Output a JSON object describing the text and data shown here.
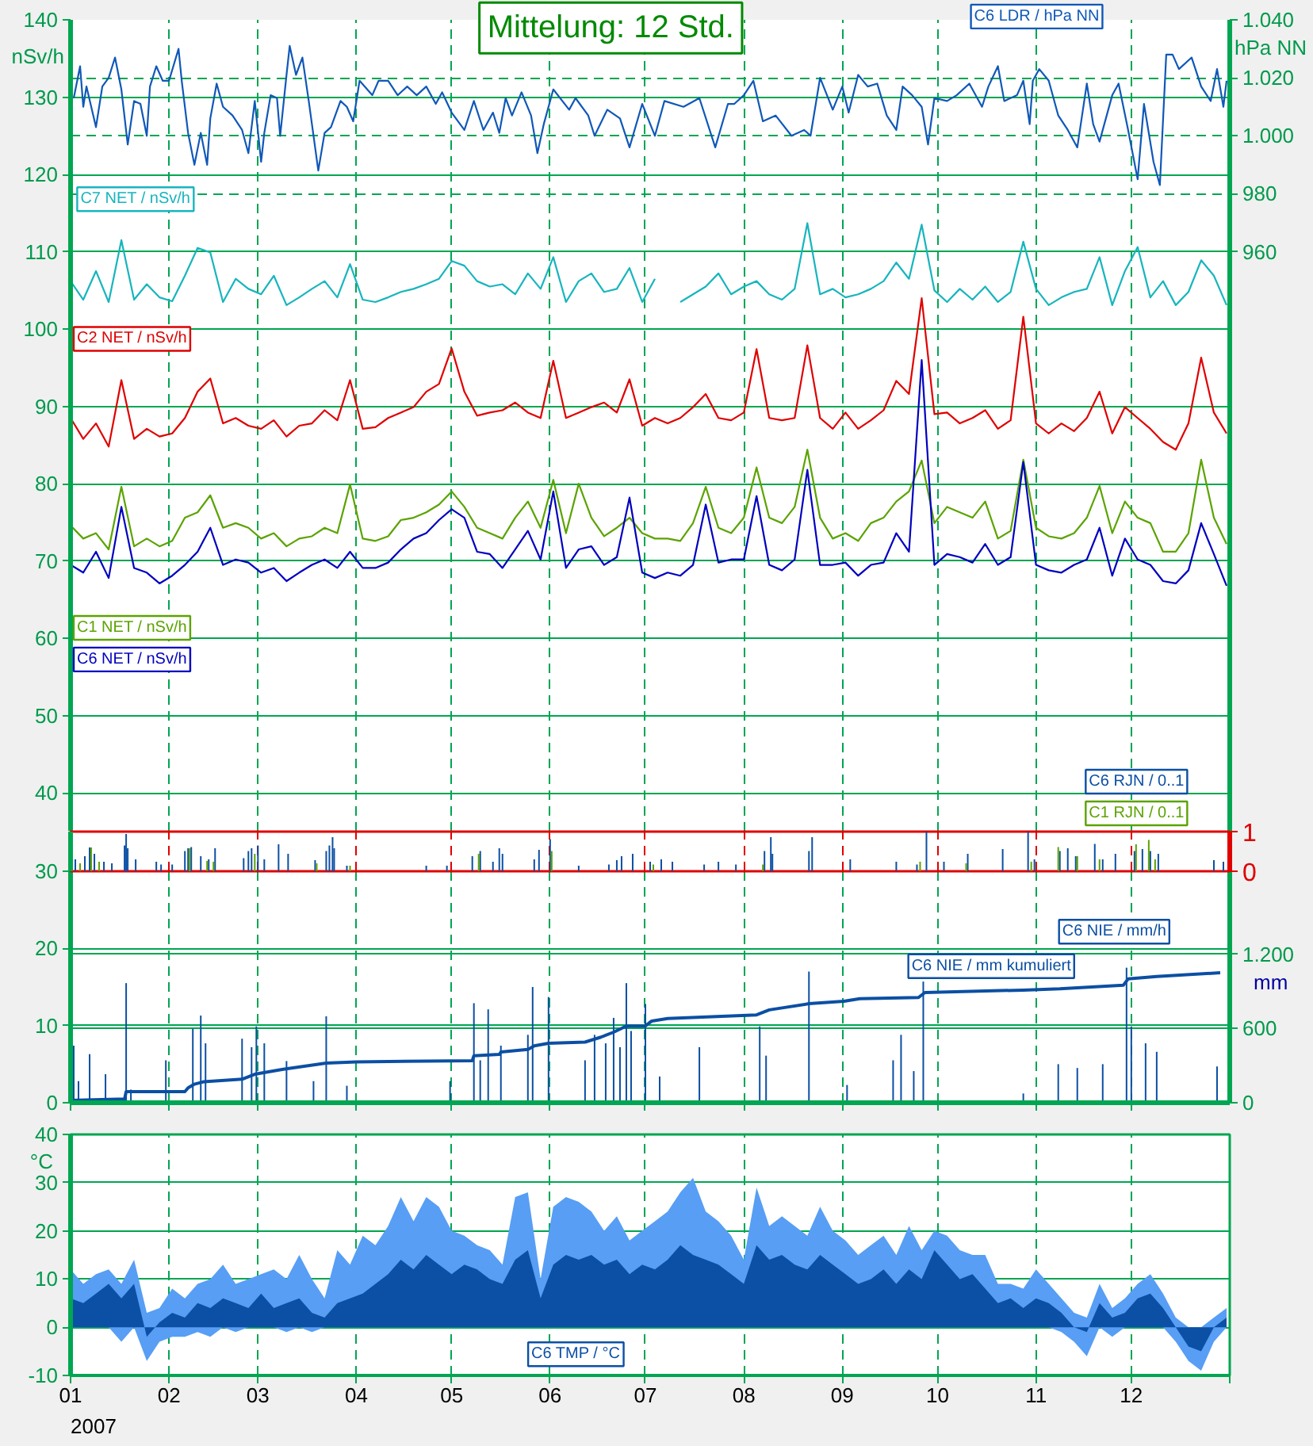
{
  "chart_data": [
    {
      "type": "line",
      "title": "Mittelung: 12 Std.",
      "ylabel": "nSv/h",
      "y2label": "hPa NN",
      "x": [
        "2007-01-01",
        "2007-01-05",
        "2007-01-09",
        "2007-01-13",
        "2007-01-17",
        "2007-01-21",
        "2007-01-25",
        "2007-01-29",
        "2007-02-02",
        "2007-02-06",
        "2007-02-10",
        "2007-02-14",
        "2007-02-18",
        "2007-02-22",
        "2007-02-26",
        "2007-03-02",
        "2007-03-06",
        "2007-03-10",
        "2007-03-14",
        "2007-03-18",
        "2007-03-22",
        "2007-03-26",
        "2007-03-30",
        "2007-04-03",
        "2007-04-07",
        "2007-04-11",
        "2007-04-15",
        "2007-04-19",
        "2007-04-23",
        "2007-04-27",
        "2007-05-01",
        "2007-05-05",
        "2007-05-09",
        "2007-05-13",
        "2007-05-17",
        "2007-05-21",
        "2007-05-25",
        "2007-05-29",
        "2007-06-02",
        "2007-06-06",
        "2007-06-10",
        "2007-06-14",
        "2007-06-18",
        "2007-06-22",
        "2007-06-26",
        "2007-06-30",
        "2007-07-04",
        "2007-07-08",
        "2007-07-12",
        "2007-07-16",
        "2007-07-20",
        "2007-07-24",
        "2007-07-28",
        "2007-08-01",
        "2007-08-05",
        "2007-08-09",
        "2007-08-13",
        "2007-08-17",
        "2007-08-21",
        "2007-08-25",
        "2007-08-29",
        "2007-09-02",
        "2007-09-06",
        "2007-09-10",
        "2007-09-14",
        "2007-09-18",
        "2007-09-22",
        "2007-09-26",
        "2007-09-30",
        "2007-10-04",
        "2007-10-08",
        "2007-10-12",
        "2007-10-16",
        "2007-10-20",
        "2007-10-24",
        "2007-10-28",
        "2007-11-01",
        "2007-11-05",
        "2007-11-09",
        "2007-11-13",
        "2007-11-17",
        "2007-11-21",
        "2007-11-25",
        "2007-11-29",
        "2007-12-03",
        "2007-12-07",
        "2007-12-11",
        "2007-12-15",
        "2007-12-19",
        "2007-12-23",
        "2007-12-27",
        "2007-12-31"
      ],
      "series": [
        {
          "name": "C6 LDR / hPa NN",
          "color": "#1058b8",
          "axis": "y2",
          "x": [
            "2007-01-02",
            "2007-01-04",
            "2007-01-05",
            "2007-01-06",
            "2007-01-09",
            "2007-01-11",
            "2007-01-13",
            "2007-01-15",
            "2007-01-17",
            "2007-01-19",
            "2007-01-21",
            "2007-01-23",
            "2007-01-25",
            "2007-01-26",
            "2007-01-28",
            "2007-01-30",
            "2007-02-01",
            "2007-02-04",
            "2007-02-05",
            "2007-02-07",
            "2007-02-09",
            "2007-02-11",
            "2007-02-13",
            "2007-02-14",
            "2007-02-16",
            "2007-02-18",
            "2007-02-21",
            "2007-02-24",
            "2007-02-26",
            "2007-02-28",
            "2007-03-02",
            "2007-03-03",
            "2007-03-05",
            "2007-03-07",
            "2007-03-08",
            "2007-03-10",
            "2007-03-11",
            "2007-03-13",
            "2007-03-15",
            "2007-03-17",
            "2007-03-20",
            "2007-03-22",
            "2007-03-24",
            "2007-03-27",
            "2007-03-29",
            "2007-03-31",
            "2007-04-02",
            "2007-04-06",
            "2007-04-08",
            "2007-04-11",
            "2007-04-14",
            "2007-04-17",
            "2007-04-20",
            "2007-04-23",
            "2007-04-26",
            "2007-04-28",
            "2007-05-01",
            "2007-05-05",
            "2007-05-08",
            "2007-05-11",
            "2007-05-14",
            "2007-05-16",
            "2007-05-18",
            "2007-05-20",
            "2007-05-23",
            "2007-05-26",
            "2007-05-28",
            "2007-05-30",
            "2007-06-02",
            "2007-06-07",
            "2007-06-09",
            "2007-06-13",
            "2007-06-15",
            "2007-06-19",
            "2007-06-23",
            "2007-06-26",
            "2007-06-30",
            "2007-07-04",
            "2007-07-07",
            "2007-07-13",
            "2007-07-18",
            "2007-07-23",
            "2007-07-27",
            "2007-07-29",
            "2007-08-01",
            "2007-08-04",
            "2007-08-07",
            "2007-08-11",
            "2007-08-16",
            "2007-08-20",
            "2007-08-22",
            "2007-08-25",
            "2007-08-29",
            "2007-09-01",
            "2007-09-03",
            "2007-09-06",
            "2007-09-09",
            "2007-09-12",
            "2007-09-15",
            "2007-09-18",
            "2007-09-20",
            "2007-09-23",
            "2007-09-26",
            "2007-09-28",
            "2007-09-30",
            "2007-10-04",
            "2007-10-07",
            "2007-10-11",
            "2007-10-15",
            "2007-10-17",
            "2007-10-20",
            "2007-10-22",
            "2007-10-26",
            "2007-10-28",
            "2007-10-30",
            "2007-10-31",
            "2007-11-02",
            "2007-11-05",
            "2007-11-08",
            "2007-11-11",
            "2007-11-14",
            "2007-11-17",
            "2007-11-19",
            "2007-11-21",
            "2007-11-25",
            "2007-11-27",
            "2007-11-30",
            "2007-12-03",
            "2007-12-05",
            "2007-12-08",
            "2007-12-10",
            "2007-12-12",
            "2007-12-14",
            "2007-12-16",
            "2007-12-20",
            "2007-12-23",
            "2007-12-26",
            "2007-12-28",
            "2007-12-30",
            "2007-12-31"
          ],
          "values": [
            1013,
            1024,
            1010,
            1017,
            1003,
            1017,
            1020,
            1027,
            1016,
            997,
            1012,
            1011,
            1000,
            1017,
            1024,
            1019,
            1019,
            1030,
            1019,
            1001,
            990,
            1001,
            990,
            1006,
            1018,
            1010,
            1007,
            1002,
            994,
            1012,
            991,
            1001,
            1014,
            1013,
            1000,
            1021,
            1031,
            1021,
            1027,
            1012,
            988,
            1001,
            1003,
            1012,
            1010,
            1005,
            1019,
            1014,
            1019,
            1019,
            1014,
            1017,
            1014,
            1017,
            1011,
            1015,
            1008,
            1002,
            1012,
            1002,
            1008,
            1001,
            1013,
            1007,
            1015,
            1007,
            994,
            1004,
            1016,
            1009,
            1013,
            1007,
            1000,
            1009,
            1006,
            996,
            1011,
            1000,
            1012,
            1010,
            1013,
            996,
            1011,
            1011,
            1014,
            1019,
            1005,
            1007,
            1000,
            1002,
            1000,
            1020,
            1009,
            1017,
            1008,
            1021,
            1017,
            1018,
            1007,
            1002,
            1017,
            1014,
            1010,
            997,
            1013,
            1012,
            1014,
            1018,
            1010,
            1017,
            1024,
            1012,
            1014,
            1019,
            1004,
            1019,
            1023,
            1019,
            1007,
            1002,
            996,
            1018,
            1004,
            998,
            1014,
            1018,
            1002,
            985,
            1011,
            991,
            983,
            1028,
            1028,
            1023,
            1027,
            1017,
            1012,
            1023,
            1010,
            1019
          ]
        },
        {
          "name": "C7 NET / nSv/h",
          "color": "#17b5bd",
          "values": [
            106.2,
            103.8,
            107.5,
            103.5,
            111.5,
            103.8,
            105.8,
            104.1,
            103.6,
            106.9,
            110.5,
            109.9,
            103.5,
            106.5,
            105.2,
            104.5,
            106.9,
            103.1,
            104.1,
            105.2,
            106.2,
            104.1,
            108.4,
            103.8,
            103.5,
            104.1,
            104.8,
            105.2,
            105.8,
            106.5,
            108.8,
            108.2,
            106.2,
            105.5,
            105.8,
            104.5,
            107.2,
            105.2,
            109.3,
            103.5,
            106.2,
            107.2,
            104.8,
            105.2,
            107.9,
            103.5,
            106.5,
            null,
            103.5,
            104.5,
            105.5,
            107.2,
            104.5,
            105.5,
            106.2,
            104.5,
            103.8,
            105.2,
            113.7,
            104.5,
            105.2,
            104.1,
            104.5,
            105.2,
            106.2,
            108.6,
            106.5,
            113.5,
            105.0,
            103.5,
            105.2,
            103.8,
            105.5,
            103.5,
            104.8,
            111.3,
            105.2,
            103.1,
            104.1,
            104.8,
            105.2,
            109.3,
            103.1,
            107.5,
            110.6,
            104.1,
            106.2,
            103.1,
            104.8,
            108.9,
            106.9,
            103.1
          ]
        },
        {
          "name": "C2 NET / nSv/h",
          "color": "#e00000",
          "values": [
            88.5,
            85.8,
            87.8,
            84.8,
            93.4,
            85.8,
            87.1,
            86.1,
            86.5,
            88.5,
            91.9,
            93.6,
            87.8,
            88.5,
            87.5,
            87.1,
            88.2,
            86.1,
            87.5,
            87.8,
            89.5,
            88.2,
            93.4,
            87.1,
            87.3,
            88.5,
            89.2,
            89.9,
            91.9,
            92.9,
            97.5,
            91.9,
            88.8,
            89.2,
            89.5,
            90.5,
            89.2,
            88.5,
            95.9,
            88.5,
            89.2,
            89.9,
            90.5,
            89.2,
            93.5,
            87.5,
            88.5,
            87.8,
            88.5,
            89.9,
            91.6,
            88.5,
            88.2,
            89.2,
            97.4,
            88.5,
            88.2,
            88.5,
            97.9,
            88.5,
            87.1,
            89.2,
            87.1,
            88.2,
            89.5,
            93.3,
            91.6,
            104.0,
            89.0,
            89.2,
            87.8,
            88.5,
            89.5,
            87.1,
            88.2,
            101.6,
            87.8,
            86.5,
            87.8,
            86.8,
            88.5,
            91.9,
            86.5,
            89.9,
            88.5,
            87.1,
            85.4,
            84.4,
            87.8,
            96.3,
            89.2,
            86.5
          ]
        },
        {
          "name": "C1 NET / nSv/h",
          "color": "#5ba300",
          "values": [
            74.6,
            72.9,
            73.6,
            71.5,
            79.6,
            71.9,
            72.9,
            71.9,
            72.6,
            75.6,
            76.3,
            78.5,
            74.3,
            74.9,
            74.3,
            72.9,
            73.6,
            71.9,
            72.9,
            73.2,
            74.3,
            73.6,
            79.9,
            72.9,
            72.6,
            73.2,
            75.3,
            75.6,
            76.3,
            77.3,
            79.0,
            77.0,
            74.3,
            73.6,
            72.9,
            75.6,
            77.7,
            74.3,
            80.5,
            73.6,
            80.0,
            75.6,
            73.2,
            74.3,
            75.6,
            73.6,
            72.9,
            72.9,
            72.6,
            74.9,
            79.6,
            74.3,
            73.6,
            75.6,
            82.1,
            75.6,
            74.9,
            77.0,
            84.4,
            75.6,
            72.9,
            73.6,
            72.6,
            74.9,
            75.6,
            77.7,
            79.0,
            83.0,
            74.9,
            77.0,
            76.3,
            75.6,
            77.7,
            72.9,
            73.9,
            83.1,
            74.3,
            73.2,
            72.9,
            73.6,
            75.6,
            79.7,
            73.6,
            77.7,
            75.6,
            74.9,
            71.2,
            71.2,
            73.6,
            83.1,
            75.6,
            72.2
          ]
        },
        {
          "name": "C6 NET / nSv/h",
          "color": "#0000c0",
          "values": [
            69.5,
            68.5,
            71.2,
            67.8,
            77.0,
            69.1,
            68.5,
            67.1,
            68.1,
            69.5,
            71.2,
            74.3,
            69.5,
            70.2,
            69.8,
            68.5,
            69.1,
            67.4,
            68.5,
            69.5,
            70.2,
            69.1,
            71.2,
            69.1,
            69.1,
            69.8,
            71.5,
            72.9,
            73.6,
            75.3,
            76.7,
            75.6,
            71.2,
            70.9,
            69.1,
            71.5,
            73.9,
            70.2,
            79.0,
            69.1,
            71.5,
            71.9,
            69.5,
            70.5,
            78.2,
            68.5,
            67.8,
            68.5,
            68.1,
            69.5,
            77.3,
            69.8,
            70.2,
            70.2,
            78.4,
            69.5,
            68.8,
            70.2,
            81.8,
            69.5,
            69.5,
            69.8,
            68.1,
            69.5,
            69.8,
            73.6,
            71.2,
            96.0,
            69.5,
            70.9,
            70.5,
            69.8,
            72.2,
            69.5,
            70.5,
            82.8,
            69.5,
            68.8,
            68.5,
            69.5,
            70.2,
            74.3,
            68.1,
            72.9,
            70.2,
            69.5,
            67.4,
            67.1,
            68.8,
            74.9,
            70.9,
            66.8
          ]
        }
      ],
      "xlim": [
        "2007-01-01",
        "2008-01-01"
      ],
      "xticks": [
        "2007-01-01",
        "2007-02-01",
        "2007-03-01",
        "2007-04-01",
        "2007-05-01",
        "2007-06-01",
        "2007-07-01",
        "2007-08-01",
        "2007-09-01",
        "2007-10-01",
        "2007-11-01",
        "2007-12-01"
      ],
      "ylim": [
        35,
        140
      ],
      "yticks": [
        40,
        50,
        60,
        70,
        80,
        90,
        100,
        110,
        120,
        130,
        140
      ],
      "y2lim": [
        760,
        1040
      ],
      "y2ticks": [
        960,
        980,
        {
          "value": 1000,
          "label": "1.000"
        },
        {
          "value": 1020,
          "label": "1.020"
        },
        {
          "value": 1040,
          "label": "1.040"
        }
      ],
      "grid": true,
      "tick_labels": "y"
    },
    {
      "type": "bar",
      "series": [
        {
          "name": "C6 RJN / 0..1",
          "color": "#0b4fa3",
          "axis": "y2",
          "x": [
            "2007-01-02T12:00",
            "2007-01-05T12:00",
            "2007-01-07",
            "2007-01-08T12:00",
            "2007-01-11T12:00",
            "2007-01-14",
            "2007-01-18",
            "2007-01-18T12:00",
            "2007-01-19",
            "2007-01-21T12:00",
            "2007-01-28",
            "2007-01-29T12:00",
            "2007-02-02",
            "2007-02-06",
            "2007-02-07",
            "2007-02-08",
            "2007-02-11",
            "2007-02-13T12:00",
            "2007-02-15T12:00",
            "2007-02-24T12:00",
            "2007-02-26",
            "2007-02-27",
            "2007-03-01",
            "2007-03-03",
            "2007-03-07T12:00",
            "2007-03-10T12:00",
            "2007-03-19",
            "2007-03-22T12:00",
            "2007-03-23T12:00",
            "2007-03-24T12:00",
            "2007-03-25",
            "2007-03-29",
            "2007-04-23",
            "2007-04-29T12:00",
            "2007-05-07T12:00",
            "2007-05-10",
            "2007-05-14",
            "2007-05-16",
            "2007-05-17",
            "2007-05-27",
            "2007-05-28T12:00",
            "2007-06-01",
            "2007-06-10",
            "2007-06-19T12:00",
            "2007-06-22",
            "2007-06-23T12:00",
            "2007-06-27",
            "2007-07-02T12:00",
            "2007-07-06",
            "2007-07-09T12:00",
            "2007-07-19T12:00",
            "2007-07-24",
            "2007-07-29T12:00",
            "2007-08-07T12:00",
            "2007-08-09T12:00",
            "2007-08-10",
            "2007-08-21T12:00",
            "2007-08-22T12:00",
            "2007-09-03T12:00",
            "2007-09-18",
            "2007-09-24T12:00",
            "2007-09-27T12:00",
            "2007-10-03",
            "2007-10-10T12:00",
            "2007-10-21T12:00",
            "2007-10-29T12:00",
            "2007-10-31T12:00",
            "2007-11-08T12:00",
            "2007-11-11",
            "2007-11-13T12:00",
            "2007-11-19T12:00",
            "2007-11-22",
            "2007-11-26",
            "2007-12-02",
            "2007-12-04T12:00",
            "2007-12-07",
            "2007-12-09T12:00",
            "2007-12-27",
            "2007-12-30"
          ],
          "values": [
            0.3,
            0.38,
            0.6,
            0.44,
            0.24,
            0.2,
            0.65,
            0.94,
            0.58,
            0.3,
            0.24,
            0.17,
            0.17,
            0.51,
            0.58,
            0.61,
            0.38,
            0.3,
            0.58,
            0.33,
            0.51,
            0.58,
            0.65,
            0.3,
            0.68,
            0.44,
            0.28,
            0.51,
            0.65,
            0.86,
            0.58,
            0.14,
            0.14,
            0.14,
            0.38,
            0.51,
            0.24,
            0.58,
            0.44,
            0.3,
            0.54,
            0.81,
            0.14,
            0.17,
            0.28,
            0.38,
            0.44,
            0.24,
            0.3,
            0.24,
            0.17,
            0.24,
            0.17,
            0.51,
            0.86,
            0.44,
            0.51,
            0.86,
            0.3,
            0.24,
            0.17,
            1.0,
            0.24,
            0.44,
            0.56,
            1.0,
            0.3,
            0.51,
            0.58,
            0.38,
            0.69,
            0.3,
            0.44,
            0.51,
            0.56,
            0.51,
            0.44,
            0.28,
            0.24
          ]
        },
        {
          "name": "C1 RJN / 0..1",
          "color": "#5ba300",
          "axis": "y2",
          "x": [
            "2007-01-04",
            "2007-01-07T12:00",
            "2007-01-10",
            "2007-02-07T12:00",
            "2007-02-13",
            "2007-02-15",
            "2007-02-28",
            "2007-03-19T12:00",
            "2007-03-30",
            "2007-05-09T12:00",
            "2007-06-01T12:00",
            "2007-07-03T12:00",
            "2007-08-07",
            "2007-09-25T12:00",
            "2007-10-10",
            "2007-10-30T12:00",
            "2007-11-08",
            "2007-11-14",
            "2007-11-21",
            "2007-12-02T12:00",
            "2007-12-06T12:00",
            "2007-12-08T12:00"
          ],
          "values": [
            0.2,
            0.6,
            0.24,
            0.58,
            0.26,
            0.24,
            0.44,
            0.2,
            0.14,
            0.44,
            0.51,
            0.17,
            0.17,
            0.24,
            0.2,
            0.24,
            0.61,
            0.38,
            0.3,
            0.68,
            0.79,
            0.3
          ]
        }
      ],
      "xlim": [
        "2007-01-01",
        "2008-01-01"
      ],
      "xticks": [
        "2007-01-01",
        "2007-02-01",
        "2007-03-01",
        "2007-04-01",
        "2007-05-01",
        "2007-06-01",
        "2007-07-01",
        "2007-08-01",
        "2007-09-01",
        "2007-10-01",
        "2007-11-01",
        "2007-12-01"
      ],
      "y2lim": [
        0,
        1
      ],
      "y2ticks": [
        0,
        1
      ],
      "grid": "x",
      "tick_labels": "y"
    },
    {
      "type": "bar",
      "y2label": "mm",
      "series": [
        {
          "name": "C6 NIE / mm/h",
          "color": "#0b4fa3",
          "x": [
            "2007-01-02",
            "2007-01-03T12:00",
            "2007-01-07",
            "2007-01-12",
            "2007-01-18T12:00",
            "2007-01-20",
            "2007-01-31",
            "2007-02-08T12:00",
            "2007-02-11",
            "2007-02-12T12:00",
            "2007-02-24",
            "2007-02-27",
            "2007-02-28T12:00",
            "2007-03-03",
            "2007-03-10",
            "2007-03-18T12:00",
            "2007-03-22T12:00",
            "2007-03-29",
            "2007-04-30T12:00",
            "2007-05-08",
            "2007-05-10",
            "2007-05-12T12:00",
            "2007-05-16T12:00",
            "2007-05-25",
            "2007-05-26T12:00",
            "2007-05-31T12:00",
            "2007-06-12",
            "2007-06-15",
            "2007-06-18T12:00",
            "2007-06-21",
            "2007-06-23",
            "2007-06-25",
            "2007-06-26T12:00",
            "2007-07-01",
            "2007-07-05T12:00",
            "2007-07-18",
            "2007-08-06",
            "2007-08-08",
            "2007-08-21T12:00",
            "2007-09-02T12:00",
            "2007-09-17",
            "2007-09-19T12:00",
            "2007-09-23T12:00",
            "2007-09-26T12:00",
            "2007-10-28",
            "2007-11-08",
            "2007-11-14",
            "2007-11-22",
            "2007-11-29T12:00",
            "2007-12-01",
            "2007-12-05T12:00",
            "2007-12-09",
            "2007-12-28"
          ],
          "values": [
            7.4,
            2.8,
            6.3,
            3.7,
            15.5,
            1.7,
            5.5,
            9.6,
            11.3,
            7.7,
            8.3,
            7.2,
            9.9,
            7.7,
            5.4,
            2.8,
            11.2,
            2.2,
            2.8,
            12.9,
            5.5,
            12.1,
            7.4,
            8.8,
            15.0,
            13.7,
            5.5,
            8.8,
            7.7,
            11.0,
            7.2,
            15.5,
            9.3,
            12.8,
            3.4,
            7.2,
            9.9,
            6.1,
            17.0,
            2.3,
            5.5,
            8.8,
            4.1,
            15.7,
            1.2,
            5.0,
            4.5,
            5.0,
            17.5,
            9.9,
            7.7,
            6.6,
            4.7
          ]
        },
        {
          "type": "line",
          "name": "C6 NIE / mm kumuliert",
          "color": "#0b4fa3",
          "axis": "y2",
          "x": [
            "2007-01-01",
            "2007-01-18",
            "2007-01-18T12:00",
            "2007-02-06",
            "2007-02-07",
            "2007-02-09",
            "2007-02-12",
            "2007-02-24",
            "2007-02-28",
            "2007-03-09",
            "2007-03-22T12:00",
            "2007-04-01",
            "2007-05-07T12:00",
            "2007-05-08",
            "2007-05-16",
            "2007-05-16T12:00",
            "2007-05-25",
            "2007-05-27",
            "2007-05-31T12:00",
            "2007-06-12",
            "2007-06-17",
            "2007-06-21",
            "2007-06-25",
            "2007-07-01",
            "2007-07-03",
            "2007-07-08",
            "2007-08-05",
            "2007-08-09",
            "2007-08-21T12:00",
            "2007-09-01T12:00",
            "2007-09-06T12:00",
            "2007-09-25",
            "2007-09-27",
            "2007-10-28",
            "2007-11-08T12:00",
            "2007-11-28T12:00",
            "2007-11-30",
            "2007-12-09",
            "2007-12-29"
          ],
          "values": [
            20,
            30,
            90,
            90,
            120,
            150,
            170,
            190,
            230,
            270,
            320,
            330,
            340,
            380,
            390,
            410,
            430,
            460,
            480,
            490,
            530,
            570,
            620,
            620,
            660,
            680,
            710,
            750,
            800,
            820,
            840,
            850,
            890,
            910,
            920,
            950,
            1000,
            1020,
            1050
          ]
        }
      ],
      "xlim": [
        "2007-01-01",
        "2008-01-01"
      ],
      "xticks": [
        "2007-01-01",
        "2007-02-01",
        "2007-03-01",
        "2007-04-01",
        "2007-05-01",
        "2007-06-01",
        "2007-07-01",
        "2007-08-01",
        "2007-09-01",
        "2007-10-01",
        "2007-11-01",
        "2007-12-01"
      ],
      "ylim": [
        0,
        30
      ],
      "yticks": [
        0,
        10,
        20,
        30
      ],
      "y2lim": [
        0,
        1870
      ],
      "y2ticks": [
        0,
        600,
        {
          "value": 1200,
          "label": "1.200"
        }
      ],
      "grid": true,
      "tick_labels": "y"
    },
    {
      "type": "area",
      "ylabel": "°C",
      "xlabel": "2007",
      "x": [
        "2007-01-01",
        "2007-01-05",
        "2007-01-09",
        "2007-01-13",
        "2007-01-17",
        "2007-01-21",
        "2007-01-25",
        "2007-01-29",
        "2007-02-02",
        "2007-02-06",
        "2007-02-10",
        "2007-02-14",
        "2007-02-18",
        "2007-02-22",
        "2007-02-26",
        "2007-03-02",
        "2007-03-06",
        "2007-03-10",
        "2007-03-14",
        "2007-03-18",
        "2007-03-22",
        "2007-03-26",
        "2007-03-30",
        "2007-04-03",
        "2007-04-07",
        "2007-04-11",
        "2007-04-15",
        "2007-04-19",
        "2007-04-23",
        "2007-04-27",
        "2007-05-01",
        "2007-05-05",
        "2007-05-09",
        "2007-05-13",
        "2007-05-17",
        "2007-05-21",
        "2007-05-25",
        "2007-05-29",
        "2007-06-02",
        "2007-06-06",
        "2007-06-10",
        "2007-06-14",
        "2007-06-18",
        "2007-06-22",
        "2007-06-26",
        "2007-06-30",
        "2007-07-04",
        "2007-07-08",
        "2007-07-12",
        "2007-07-16",
        "2007-07-20",
        "2007-07-24",
        "2007-07-28",
        "2007-08-01",
        "2007-08-05",
        "2007-08-09",
        "2007-08-13",
        "2007-08-17",
        "2007-08-21",
        "2007-08-25",
        "2007-08-29",
        "2007-09-02",
        "2007-09-06",
        "2007-09-10",
        "2007-09-14",
        "2007-09-18",
        "2007-09-22",
        "2007-09-26",
        "2007-09-30",
        "2007-10-04",
        "2007-10-08",
        "2007-10-12",
        "2007-10-16",
        "2007-10-20",
        "2007-10-24",
        "2007-10-28",
        "2007-11-01",
        "2007-11-05",
        "2007-11-09",
        "2007-11-13",
        "2007-11-17",
        "2007-11-21",
        "2007-11-25",
        "2007-11-29",
        "2007-12-03",
        "2007-12-07",
        "2007-12-11",
        "2007-12-15",
        "2007-12-19",
        "2007-12-23",
        "2007-12-27",
        "2007-12-31"
      ],
      "series": [
        {
          "name": "C6 TMP / °C",
          "color": "#0b50a5",
          "values": [
            6,
            5,
            7,
            9,
            6,
            9,
            -2,
            1,
            3,
            2,
            5,
            4,
            6,
            5,
            4,
            7,
            4,
            5,
            6,
            3,
            2,
            5,
            6,
            7,
            9,
            11,
            14,
            12,
            15,
            13,
            11,
            13,
            12,
            10,
            9,
            14,
            16,
            6,
            13,
            15,
            14,
            15,
            13,
            14,
            11,
            13,
            12,
            14,
            17,
            15,
            14,
            13,
            11,
            9,
            17,
            14,
            15,
            13,
            12,
            15,
            13,
            11,
            9,
            10,
            12,
            9,
            12,
            10,
            16,
            13,
            10,
            11,
            8,
            5,
            6,
            4,
            6,
            5,
            3,
            0,
            -1,
            5,
            2,
            3,
            6,
            7,
            4,
            0,
            -4,
            -5,
            0,
            2
          ],
          "upper": [
            12,
            9,
            11,
            12,
            9,
            14,
            3,
            4,
            8,
            6,
            9,
            10,
            13,
            9,
            10,
            11,
            12,
            10,
            15,
            10,
            6,
            16,
            13,
            19,
            17,
            21,
            27,
            22,
            27,
            25,
            20,
            19,
            17,
            16,
            13,
            27,
            28,
            10,
            25,
            27,
            26,
            24,
            20,
            23,
            18,
            20,
            22,
            24,
            28,
            31,
            24,
            22,
            19,
            14,
            29,
            21,
            23,
            21,
            19,
            25,
            20,
            18,
            15,
            17,
            19,
            15,
            21,
            16,
            20,
            19,
            16,
            15,
            15,
            9,
            9,
            8,
            12,
            9,
            6,
            3,
            2,
            9,
            4,
            6,
            9,
            11,
            7,
            2,
            0,
            0,
            2,
            4
          ],
          "lower": [
            0,
            0,
            0,
            0,
            -3,
            0,
            -7,
            -3,
            -2,
            -2,
            -1,
            -2,
            0,
            -1,
            0,
            0,
            0,
            -1,
            0,
            -1,
            0,
            0,
            0,
            0,
            0,
            0,
            0,
            0,
            0,
            0,
            0,
            0,
            0,
            0,
            0,
            0,
            0,
            0,
            0,
            0,
            0,
            0,
            0,
            0,
            0,
            0,
            0,
            0,
            0,
            0,
            0,
            0,
            0,
            0,
            0,
            0,
            0,
            0,
            0,
            0,
            0,
            0,
            0,
            0,
            0,
            0,
            0,
            0,
            0,
            0,
            0,
            0,
            0,
            0,
            0,
            0,
            0,
            0,
            -1,
            -3,
            -6,
            0,
            -2,
            0,
            0,
            0,
            0,
            -3,
            -7,
            -9,
            -3,
            0
          ]
        }
      ],
      "xlim": [
        "2007-01-01",
        "2008-01-01"
      ],
      "xticks": [
        {
          "value": "2007-01-01",
          "label": "01"
        },
        {
          "value": "2007-02-01",
          "label": "02"
        },
        {
          "value": "2007-03-01",
          "label": "03"
        },
        {
          "value": "2007-04-01",
          "label": "04"
        },
        {
          "value": "2007-05-01",
          "label": "05"
        },
        {
          "value": "2007-06-01",
          "label": "06"
        },
        {
          "value": "2007-07-01",
          "label": "07"
        },
        {
          "value": "2007-08-01",
          "label": "08"
        },
        {
          "value": "2007-09-01",
          "label": "09"
        },
        {
          "value": "2007-10-01",
          "label": "10"
        },
        {
          "value": "2007-11-01",
          "label": "11"
        },
        {
          "value": "2007-12-01",
          "label": "12"
        },
        {
          "value": "2008-01-01",
          "label": null
        }
      ],
      "ylim": [
        -10,
        40
      ],
      "yticks": [
        -10,
        0,
        10,
        20,
        30,
        40
      ],
      "grid": true
    }
  ]
}
